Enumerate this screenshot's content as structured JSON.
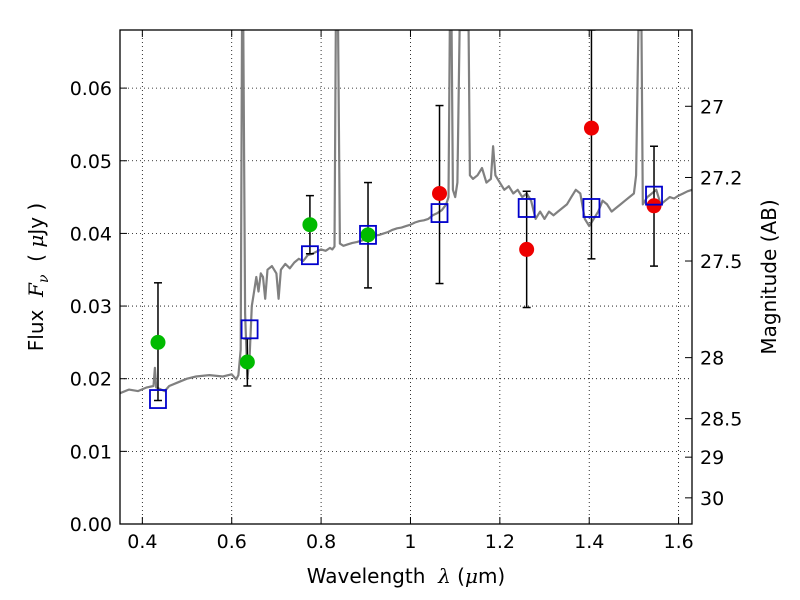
{
  "chart_data": {
    "type": "scatter",
    "title": "",
    "xlabel": "Wavelength  λ (μm)",
    "xlabel_parts": [
      "Wavelength  ",
      "λ",
      " (",
      "μ",
      "m)"
    ],
    "ylabel": "Flux  Fν  ( μJy )",
    "ylabel_parts": [
      "Flux  ",
      "F",
      "ν",
      "  ( ",
      "μ",
      "Jy )"
    ],
    "y2label": "Magnitude (AB)",
    "xlim": [
      0.35,
      1.63
    ],
    "ylim": [
      0.0,
      0.068
    ],
    "grid": true,
    "x_ticks": [
      0.4,
      0.6,
      0.8,
      1.0,
      1.2,
      1.4,
      1.6
    ],
    "x_tick_labels": [
      "0.4",
      "0.6",
      "0.8",
      "1",
      "1.2",
      "1.4",
      "1.6"
    ],
    "y_ticks": [
      0.0,
      0.01,
      0.02,
      0.03,
      0.04,
      0.05,
      0.06
    ],
    "y_tick_labels": [
      "0.00",
      "0.01",
      "0.02",
      "0.03",
      "0.04",
      "0.05",
      "0.06"
    ],
    "y2_ticks": [
      {
        "flux": 0.0575,
        "label": "27"
      },
      {
        "flux": 0.0477,
        "label": "27.2"
      },
      {
        "flux": 0.0362,
        "label": "27.5"
      },
      {
        "flux": 0.0229,
        "label": "28"
      },
      {
        "flux": 0.0145,
        "label": "28.5"
      },
      {
        "flux": 0.0092,
        "label": "29"
      },
      {
        "flux": 0.0036,
        "label": "30"
      }
    ],
    "colors": {
      "spectrum": "#808080",
      "model_marker": "#0000cc",
      "observed_green": "#00bb00",
      "observed_red": "#ee0000",
      "errorbar": "#000000",
      "grid": "#000000"
    },
    "spectrum": [
      [
        0.35,
        0.018
      ],
      [
        0.37,
        0.0185
      ],
      [
        0.39,
        0.0183
      ],
      [
        0.41,
        0.0188
      ],
      [
        0.425,
        0.019
      ],
      [
        0.428,
        0.0215
      ],
      [
        0.431,
        0.0188
      ],
      [
        0.45,
        0.0183
      ],
      [
        0.46,
        0.019
      ],
      [
        0.48,
        0.0195
      ],
      [
        0.5,
        0.02
      ],
      [
        0.52,
        0.0203
      ],
      [
        0.55,
        0.0205
      ],
      [
        0.58,
        0.0203
      ],
      [
        0.6,
        0.0206
      ],
      [
        0.61,
        0.0199
      ],
      [
        0.615,
        0.0205
      ],
      [
        0.62,
        0.024
      ],
      [
        0.623,
        0.068
      ],
      [
        0.626,
        0.068
      ],
      [
        0.63,
        0.029
      ],
      [
        0.635,
        0.02
      ],
      [
        0.64,
        0.023
      ],
      [
        0.645,
        0.03
      ],
      [
        0.65,
        0.032
      ],
      [
        0.655,
        0.034
      ],
      [
        0.66,
        0.032
      ],
      [
        0.665,
        0.0345
      ],
      [
        0.67,
        0.034
      ],
      [
        0.675,
        0.031
      ],
      [
        0.68,
        0.035
      ],
      [
        0.69,
        0.0355
      ],
      [
        0.7,
        0.0345
      ],
      [
        0.705,
        0.031
      ],
      [
        0.71,
        0.035
      ],
      [
        0.72,
        0.0358
      ],
      [
        0.73,
        0.0352
      ],
      [
        0.74,
        0.036
      ],
      [
        0.75,
        0.0365
      ],
      [
        0.76,
        0.0362
      ],
      [
        0.77,
        0.037
      ],
      [
        0.78,
        0.0372
      ],
      [
        0.79,
        0.0375
      ],
      [
        0.8,
        0.0378
      ],
      [
        0.81,
        0.0376
      ],
      [
        0.815,
        0.0378
      ],
      [
        0.82,
        0.038
      ],
      [
        0.825,
        0.0378
      ],
      [
        0.83,
        0.0382
      ],
      [
        0.833,
        0.068
      ],
      [
        0.838,
        0.068
      ],
      [
        0.842,
        0.0386
      ],
      [
        0.85,
        0.0383
      ],
      [
        0.86,
        0.0385
      ],
      [
        0.87,
        0.0387
      ],
      [
        0.88,
        0.0388
      ],
      [
        0.89,
        0.039
      ],
      [
        0.9,
        0.0392
      ],
      [
        0.91,
        0.0395
      ],
      [
        0.92,
        0.0397
      ],
      [
        0.93,
        0.0398
      ],
      [
        0.94,
        0.04
      ],
      [
        0.95,
        0.0402
      ],
      [
        0.96,
        0.0405
      ],
      [
        0.97,
        0.0407
      ],
      [
        0.98,
        0.0408
      ],
      [
        0.99,
        0.041
      ],
      [
        1.0,
        0.0412
      ],
      [
        1.01,
        0.0415
      ],
      [
        1.02,
        0.0417
      ],
      [
        1.03,
        0.0418
      ],
      [
        1.04,
        0.042
      ],
      [
        1.05,
        0.0425
      ],
      [
        1.06,
        0.0428
      ],
      [
        1.07,
        0.0432
      ],
      [
        1.08,
        0.044
      ],
      [
        1.085,
        0.045
      ],
      [
        1.088,
        0.068
      ],
      [
        1.092,
        0.068
      ],
      [
        1.095,
        0.046
      ],
      [
        1.1,
        0.045
      ],
      [
        1.105,
        0.047
      ],
      [
        1.11,
        0.068
      ],
      [
        1.13,
        0.068
      ],
      [
        1.133,
        0.048
      ],
      [
        1.14,
        0.0475
      ],
      [
        1.15,
        0.048
      ],
      [
        1.16,
        0.049
      ],
      [
        1.17,
        0.047
      ],
      [
        1.18,
        0.0475
      ],
      [
        1.185,
        0.052
      ],
      [
        1.19,
        0.048
      ],
      [
        1.2,
        0.047
      ],
      [
        1.21,
        0.046
      ],
      [
        1.22,
        0.0465
      ],
      [
        1.23,
        0.0455
      ],
      [
        1.24,
        0.046
      ],
      [
        1.25,
        0.045
      ],
      [
        1.26,
        0.0455
      ],
      [
        1.27,
        0.0445
      ],
      [
        1.28,
        0.042
      ],
      [
        1.29,
        0.043
      ],
      [
        1.3,
        0.042
      ],
      [
        1.31,
        0.043
      ],
      [
        1.32,
        0.0425
      ],
      [
        1.33,
        0.043
      ],
      [
        1.34,
        0.0435
      ],
      [
        1.35,
        0.044
      ],
      [
        1.36,
        0.045
      ],
      [
        1.37,
        0.046
      ],
      [
        1.38,
        0.0455
      ],
      [
        1.39,
        0.042
      ],
      [
        1.4,
        0.041
      ],
      [
        1.41,
        0.042
      ],
      [
        1.42,
        0.043
      ],
      [
        1.43,
        0.0445
      ],
      [
        1.44,
        0.044
      ],
      [
        1.45,
        0.043
      ],
      [
        1.46,
        0.0435
      ],
      [
        1.47,
        0.044
      ],
      [
        1.48,
        0.0445
      ],
      [
        1.49,
        0.045
      ],
      [
        1.5,
        0.0455
      ],
      [
        1.505,
        0.048
      ],
      [
        1.51,
        0.068
      ],
      [
        1.517,
        0.068
      ],
      [
        1.52,
        0.044
      ],
      [
        1.53,
        0.045
      ],
      [
        1.54,
        0.0455
      ],
      [
        1.55,
        0.046
      ],
      [
        1.56,
        0.044
      ],
      [
        1.57,
        0.0445
      ],
      [
        1.58,
        0.045
      ],
      [
        1.59,
        0.0448
      ],
      [
        1.6,
        0.0452
      ],
      [
        1.61,
        0.0455
      ],
      [
        1.62,
        0.0458
      ],
      [
        1.63,
        0.046
      ]
    ],
    "observed": [
      {
        "x": 0.435,
        "y": 0.025,
        "err_lo": 0.017,
        "err_hi": 0.0332,
        "color": "green"
      },
      {
        "x": 0.635,
        "y": 0.0223,
        "err_lo": 0.019,
        "err_hi": 0.0255,
        "color": "green"
      },
      {
        "x": 0.775,
        "y": 0.0412,
        "err_lo": 0.0372,
        "err_hi": 0.0452,
        "color": "green"
      },
      {
        "x": 0.905,
        "y": 0.0398,
        "err_lo": 0.0325,
        "err_hi": 0.047,
        "color": "green"
      },
      {
        "x": 1.065,
        "y": 0.0455,
        "err_lo": 0.0331,
        "err_hi": 0.0576,
        "color": "red"
      },
      {
        "x": 1.26,
        "y": 0.0378,
        "err_lo": 0.0298,
        "err_hi": 0.0458,
        "color": "red"
      },
      {
        "x": 1.405,
        "y": 0.0545,
        "err_lo": 0.0365,
        "err_hi": 0.068,
        "color": "red"
      },
      {
        "x": 1.545,
        "y": 0.0438,
        "err_lo": 0.0355,
        "err_hi": 0.052,
        "color": "red"
      }
    ],
    "model": [
      {
        "x": 0.435,
        "y": 0.0172
      },
      {
        "x": 0.64,
        "y": 0.0268
      },
      {
        "x": 0.775,
        "y": 0.037
      },
      {
        "x": 0.905,
        "y": 0.0398
      },
      {
        "x": 1.065,
        "y": 0.0428
      },
      {
        "x": 1.26,
        "y": 0.0435
      },
      {
        "x": 1.405,
        "y": 0.0435
      },
      {
        "x": 1.545,
        "y": 0.0452
      }
    ]
  }
}
